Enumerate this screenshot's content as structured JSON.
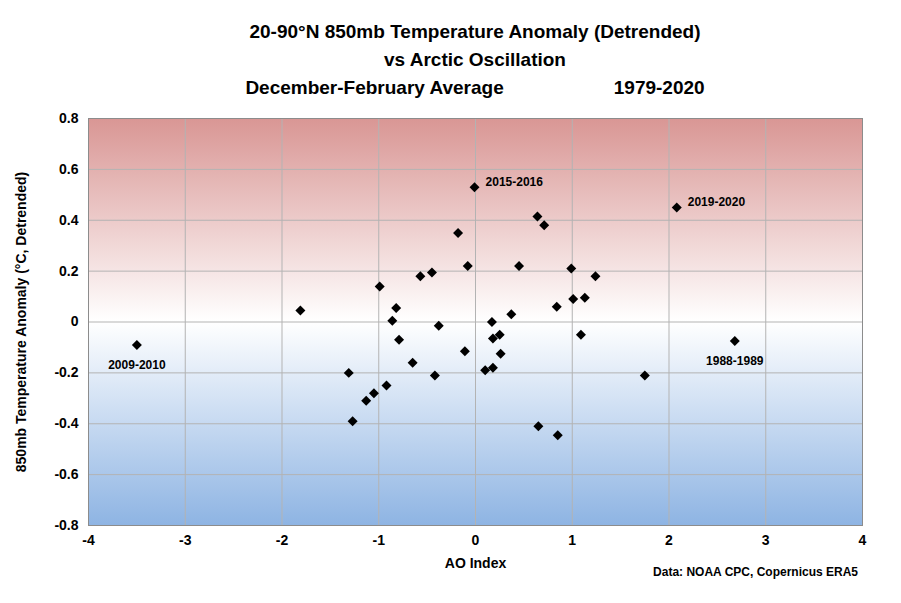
{
  "chart_data": {
    "type": "scatter",
    "title": [
      "20-90°N 850mb Temperature Anomaly (Detrended)",
      "vs Arctic Oscillation"
    ],
    "subtitle": [
      "December-February Average",
      "1979-2020"
    ],
    "caption": "Data: NOAA CPC, Copernicus ERA5",
    "x_label": "AO Index",
    "y_label": "850mb Temperature Anomaly (°C, Detrended)",
    "x": [
      -3.5,
      -1.81,
      -1.31,
      -1.27,
      -1.13,
      -1.05,
      -0.92,
      -0.99,
      -0.86,
      -0.82,
      -0.79,
      -0.65,
      -0.57,
      -0.45,
      -0.42,
      -0.38,
      -0.18,
      -0.11,
      -0.08,
      -0.01,
      0.1,
      0.17,
      0.18,
      0.18,
      0.25,
      0.26,
      0.37,
      0.45,
      0.64,
      0.71,
      0.65,
      0.84,
      0.85,
      0.99,
      1.01,
      1.09,
      1.13,
      1.24,
      1.75,
      2.08,
      2.68
    ],
    "values": [
      -0.09,
      0.045,
      -0.2,
      -0.39,
      -0.31,
      -0.28,
      -0.25,
      0.14,
      0.005,
      0.055,
      -0.07,
      -0.16,
      0.18,
      0.195,
      -0.21,
      -0.015,
      0.35,
      -0.115,
      0.22,
      0.53,
      -0.19,
      0.0,
      -0.065,
      -0.18,
      -0.05,
      -0.125,
      0.03,
      0.22,
      0.415,
      0.38,
      -0.41,
      0.06,
      -0.445,
      0.21,
      0.09,
      -0.05,
      0.095,
      0.18,
      -0.21,
      0.45,
      -0.075
    ],
    "color": "#000000",
    "marker": "diamond",
    "xlim": [
      -4,
      4
    ],
    "xticks": [
      -4,
      -3,
      -2,
      -1,
      0,
      1,
      2,
      3,
      4
    ],
    "ylim": [
      -0.8,
      0.8
    ],
    "yticks": [
      -0.8,
      -0.6,
      -0.4,
      -0.2,
      0,
      0.2,
      0.4,
      0.6,
      0.8
    ],
    "grid": true,
    "annotations": [
      {
        "text": "2015-2016",
        "x": -0.01,
        "y": 0.53
      },
      {
        "text": "2019-2020",
        "x": 2.08,
        "y": 0.45
      },
      {
        "text": "2009-2010",
        "x": -3.5,
        "y": -0.09
      },
      {
        "text": "1988-1989",
        "x": 2.68,
        "y": -0.075
      }
    ]
  }
}
